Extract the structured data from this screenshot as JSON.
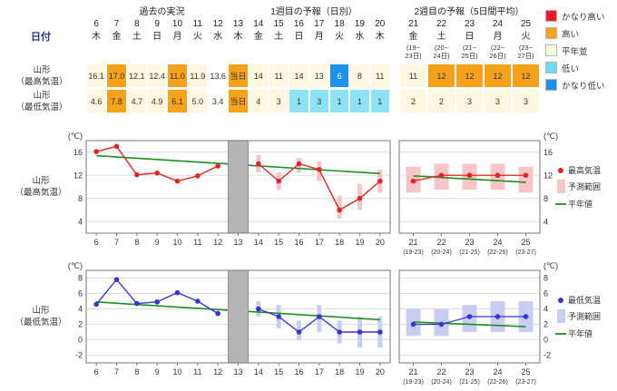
{
  "header": {
    "date_label": "日付",
    "sections": [
      {
        "id": "past",
        "label": "過去の実況"
      },
      {
        "id": "week1",
        "label": "1週目の予報（日別）"
      },
      {
        "id": "week2",
        "label": "2週目の予報（5日間平均）"
      }
    ]
  },
  "category_legend": [
    {
      "label": "かなり高い",
      "color": "#ee1c25"
    },
    {
      "label": "高い",
      "color": "#f6a21d"
    },
    {
      "label": "平年並",
      "color": "#fdf8e1"
    },
    {
      "label": "低い",
      "color": "#6fd8f2"
    },
    {
      "label": "かなり低い",
      "color": "#1d90e8"
    }
  ],
  "cell_colors": {
    "vhigh": "#ee1c25",
    "high": "#f6a21d",
    "normal": "#fdf8e1",
    "low": "#8de2f4",
    "vlow": "#1d90e8",
    "none": "#ffffff",
    "today": "#f6a21d"
  },
  "table": {
    "main_days": [
      {
        "date": "6",
        "dow": "木"
      },
      {
        "date": "7",
        "dow": "金"
      },
      {
        "date": "8",
        "dow": "土"
      },
      {
        "date": "9",
        "dow": "日"
      },
      {
        "date": "10",
        "dow": "月"
      },
      {
        "date": "11",
        "dow": "火"
      },
      {
        "date": "12",
        "dow": "水"
      },
      {
        "date": "13",
        "dow": "木"
      },
      {
        "date": "14",
        "dow": "金"
      },
      {
        "date": "15",
        "dow": "土"
      },
      {
        "date": "16",
        "dow": "日"
      },
      {
        "date": "17",
        "dow": "月"
      },
      {
        "date": "18",
        "dow": "火"
      },
      {
        "date": "19",
        "dow": "水"
      },
      {
        "date": "20",
        "dow": "木"
      }
    ],
    "week2_days": [
      {
        "date": "21",
        "dow": "金",
        "range1": "(19~",
        "range2": "23日)"
      },
      {
        "date": "22",
        "dow": "土",
        "range1": "(20~",
        "range2": "24日)"
      },
      {
        "date": "23",
        "dow": "日",
        "range1": "(21~",
        "range2": "25日)"
      },
      {
        "date": "24",
        "dow": "月",
        "range1": "(22~",
        "range2": "26日)"
      },
      {
        "date": "25",
        "dow": "火",
        "range1": "(23~",
        "range2": "27日)"
      }
    ],
    "rows": [
      {
        "label_line1": "山形",
        "label_line2": "（最高気温）",
        "main_cells": [
          {
            "v": "16.1",
            "cat": "normal"
          },
          {
            "v": "17.0",
            "cat": "high"
          },
          {
            "v": "12.1",
            "cat": "normal"
          },
          {
            "v": "12.4",
            "cat": "normal"
          },
          {
            "v": "11.0",
            "cat": "high"
          },
          {
            "v": "11.9",
            "cat": "normal"
          },
          {
            "v": "13.6",
            "cat": "none"
          },
          {
            "v": "当日",
            "cat": "today"
          },
          {
            "v": "14",
            "cat": "normal"
          },
          {
            "v": "11",
            "cat": "normal"
          },
          {
            "v": "14",
            "cat": "normal"
          },
          {
            "v": "13",
            "cat": "normal"
          },
          {
            "v": "6",
            "cat": "vlow"
          },
          {
            "v": "8",
            "cat": "normal"
          },
          {
            "v": "11",
            "cat": "normal"
          }
        ],
        "week2_cells": [
          {
            "v": "11",
            "cat": "normal"
          },
          {
            "v": "12",
            "cat": "high"
          },
          {
            "v": "12",
            "cat": "high"
          },
          {
            "v": "12",
            "cat": "high"
          },
          {
            "v": "12",
            "cat": "high"
          }
        ]
      },
      {
        "label_line1": "山形",
        "label_line2": "（最低気温）",
        "main_cells": [
          {
            "v": "4.6",
            "cat": "normal"
          },
          {
            "v": "7.8",
            "cat": "high"
          },
          {
            "v": "4.7",
            "cat": "normal"
          },
          {
            "v": "4.9",
            "cat": "normal"
          },
          {
            "v": "6.1",
            "cat": "high"
          },
          {
            "v": "5.0",
            "cat": "normal"
          },
          {
            "v": "3.4",
            "cat": "none"
          },
          {
            "v": "当日",
            "cat": "today"
          },
          {
            "v": "4",
            "cat": "normal"
          },
          {
            "v": "3",
            "cat": "normal"
          },
          {
            "v": "1",
            "cat": "low"
          },
          {
            "v": "3",
            "cat": "low"
          },
          {
            "v": "1",
            "cat": "low"
          },
          {
            "v": "1",
            "cat": "low"
          },
          {
            "v": "1",
            "cat": "low"
          }
        ],
        "week2_cells": [
          {
            "v": "2",
            "cat": "normal"
          },
          {
            "v": "2",
            "cat": "normal"
          },
          {
            "v": "3",
            "cat": "normal"
          },
          {
            "v": "3",
            "cat": "normal"
          },
          {
            "v": "3",
            "cat": "normal"
          }
        ]
      }
    ]
  },
  "chart_data": [
    {
      "type": "line",
      "title": "山形（最高気温）",
      "label_line1": "山形",
      "label_line2": "（最高気温）",
      "unit": "(℃)",
      "ylim": [
        2,
        18
      ],
      "yticks": [
        4,
        8,
        12,
        16
      ],
      "point_color": "#e32222",
      "range_color": "#f7c5c8",
      "normal_color": "#1e8f1e",
      "today_x": 13,
      "past": {
        "x": [
          6,
          7,
          8,
          9,
          10,
          11,
          12
        ],
        "y": [
          16.1,
          17.0,
          12.1,
          12.4,
          11.0,
          11.9,
          13.6
        ]
      },
      "week1": {
        "x": [
          14,
          15,
          16,
          17,
          18,
          19,
          20
        ],
        "y": [
          14,
          11,
          14,
          13,
          6,
          8,
          11
        ],
        "lo": [
          12.5,
          9.5,
          12.5,
          11,
          4.5,
          6,
          9
        ],
        "hi": [
          15.5,
          12.5,
          15,
          14.5,
          8.5,
          10.5,
          13
        ]
      },
      "week2": {
        "x": [
          21,
          22,
          23,
          24,
          25
        ],
        "y": [
          11,
          12,
          12,
          12,
          12
        ],
        "lo": [
          9,
          9.5,
          9.5,
          9.5,
          9
        ],
        "hi": [
          13.5,
          14,
          14,
          14,
          13.5
        ],
        "xlabels": [
          "21",
          "22",
          "23",
          "24",
          "25"
        ],
        "xsublabels": [
          "(19-23)",
          "(20-24)",
          "(21-25)",
          "(22-26)",
          "(23-27)"
        ]
      },
      "normal_main": {
        "x": [
          6,
          20
        ],
        "y": [
          15.4,
          12.3
        ]
      },
      "normal_week2": {
        "x": [
          21,
          25
        ],
        "y": [
          11.9,
          10.8
        ]
      },
      "legend": [
        {
          "swatch": "dot",
          "label": "最高気温"
        },
        {
          "swatch": "box",
          "label": "予測範囲"
        },
        {
          "swatch": "line",
          "label": "平年値"
        }
      ]
    },
    {
      "type": "line",
      "title": "山形（最低気温）",
      "label_line1": "山形",
      "label_line2": "（最低気温）",
      "unit": "(℃)",
      "ylim": [
        -3,
        9
      ],
      "yticks": [
        -2,
        0,
        2,
        4,
        6,
        8
      ],
      "point_color": "#3535cf",
      "range_color": "#c9ccf3",
      "normal_color": "#1e8f1e",
      "today_x": 13,
      "past": {
        "x": [
          6,
          7,
          8,
          9,
          10,
          11,
          12
        ],
        "y": [
          4.6,
          7.8,
          4.7,
          4.9,
          6.1,
          5.0,
          3.4
        ]
      },
      "week1": {
        "x": [
          14,
          15,
          16,
          17,
          18,
          19,
          20
        ],
        "y": [
          4,
          3,
          1,
          3,
          1,
          1,
          1
        ],
        "lo": [
          3,
          1.5,
          0,
          1,
          -0.5,
          -1,
          -1
        ],
        "hi": [
          5,
          4.5,
          2.5,
          4.5,
          2.5,
          3,
          3
        ]
      },
      "week2": {
        "x": [
          21,
          22,
          23,
          24,
          25
        ],
        "y": [
          2,
          2,
          3,
          3,
          3
        ],
        "lo": [
          0.5,
          0.5,
          1,
          1,
          1
        ],
        "hi": [
          4,
          4,
          4.5,
          5,
          5
        ],
        "xlabels": [
          "21",
          "22",
          "23",
          "24",
          "25"
        ],
        "xsublabels": [
          "(19-23)",
          "(20-24)",
          "(21-25)",
          "(22-26)",
          "(23-27)"
        ]
      },
      "normal_main": {
        "x": [
          6,
          20
        ],
        "y": [
          4.9,
          2.6
        ]
      },
      "normal_week2": {
        "x": [
          21,
          25
        ],
        "y": [
          2.3,
          1.7
        ]
      },
      "legend": [
        {
          "swatch": "dot",
          "label": "最低気温"
        },
        {
          "swatch": "box",
          "label": "予測範囲"
        },
        {
          "swatch": "line",
          "label": "平年値"
        }
      ]
    }
  ]
}
